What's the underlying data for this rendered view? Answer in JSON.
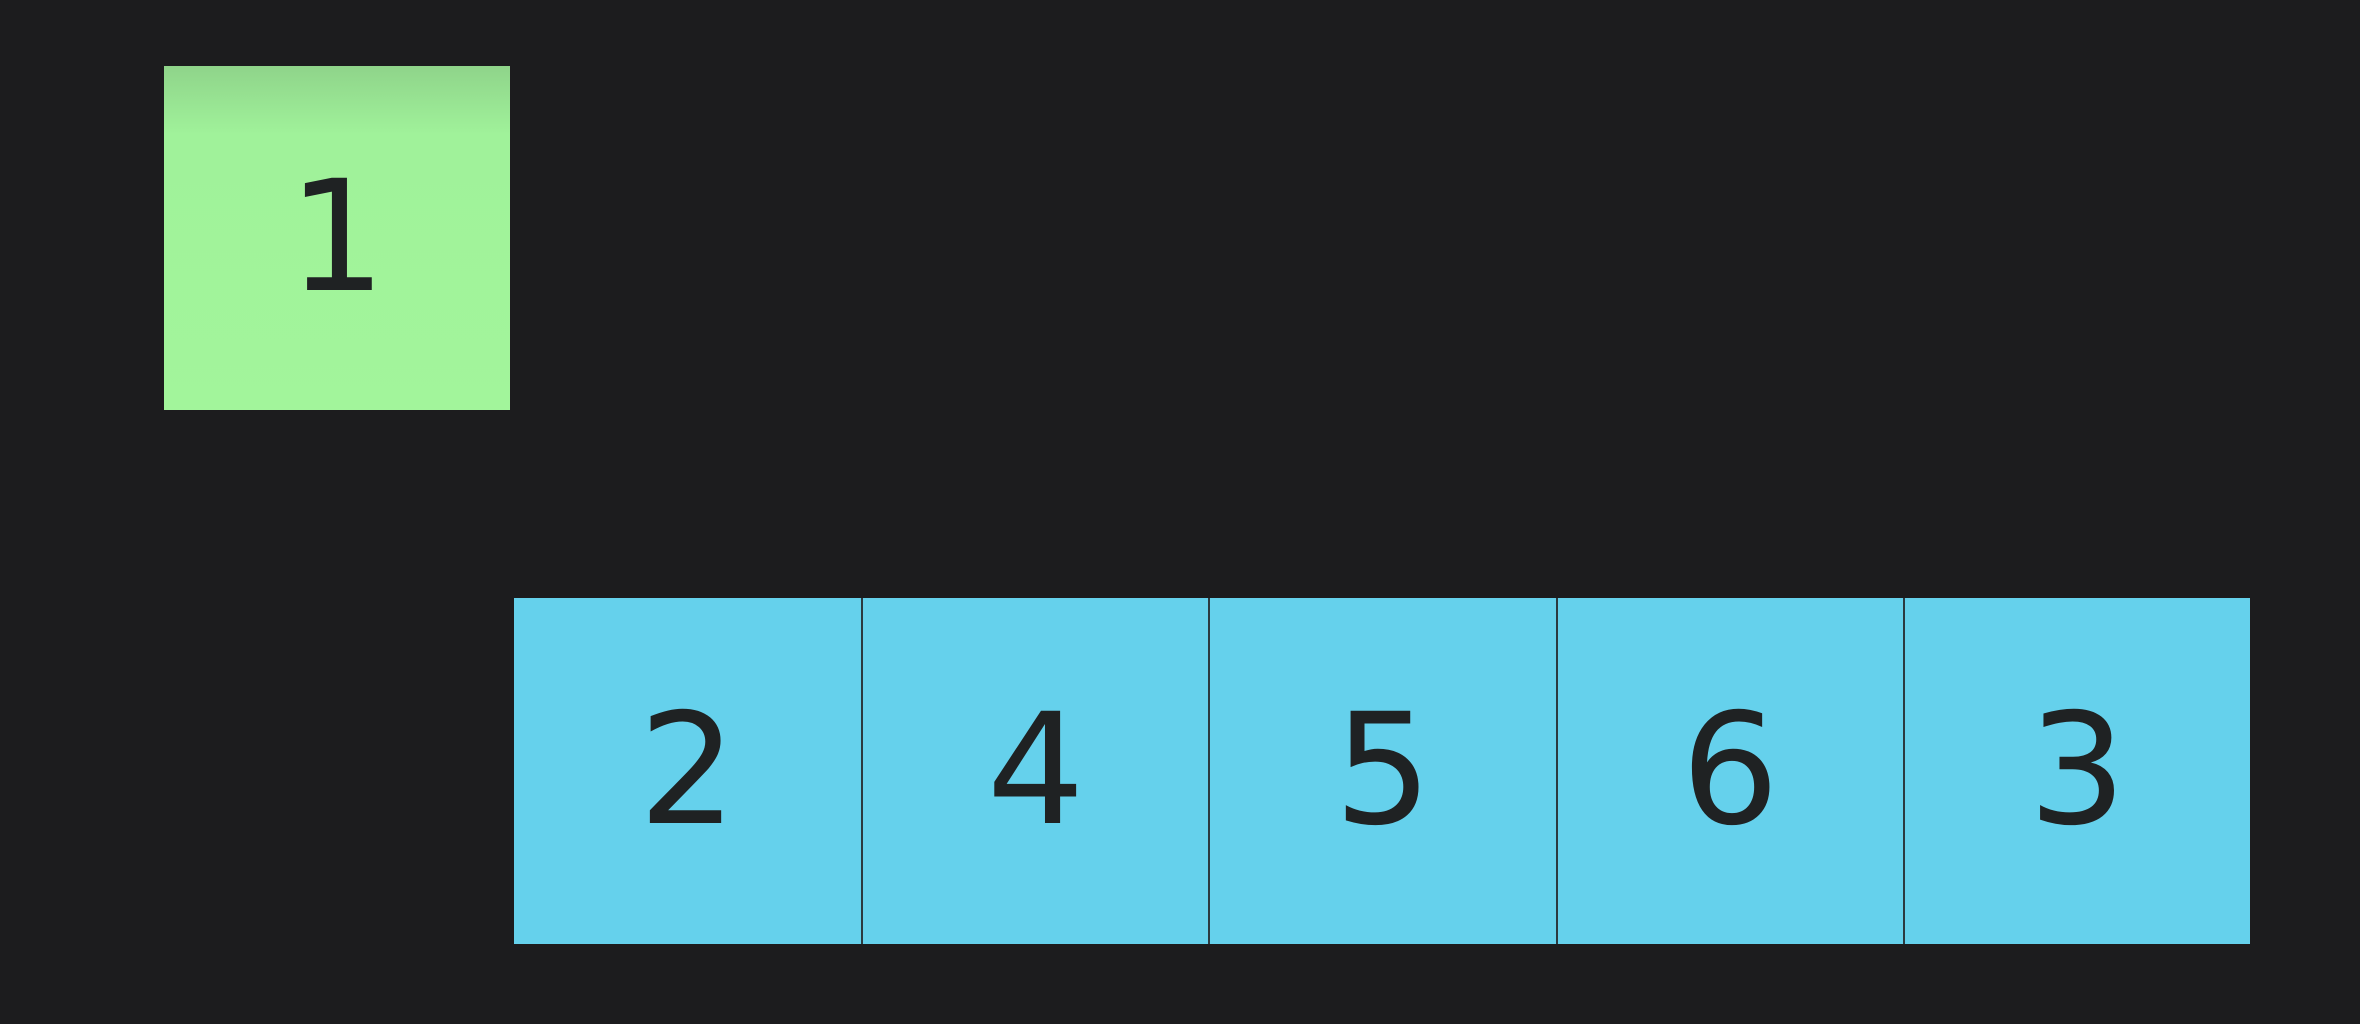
{
  "selected": {
    "value": "1",
    "color": "#a2f59b"
  },
  "array": {
    "color": "#65d1ec",
    "cells": [
      "2",
      "4",
      "5",
      "6",
      "3"
    ]
  }
}
